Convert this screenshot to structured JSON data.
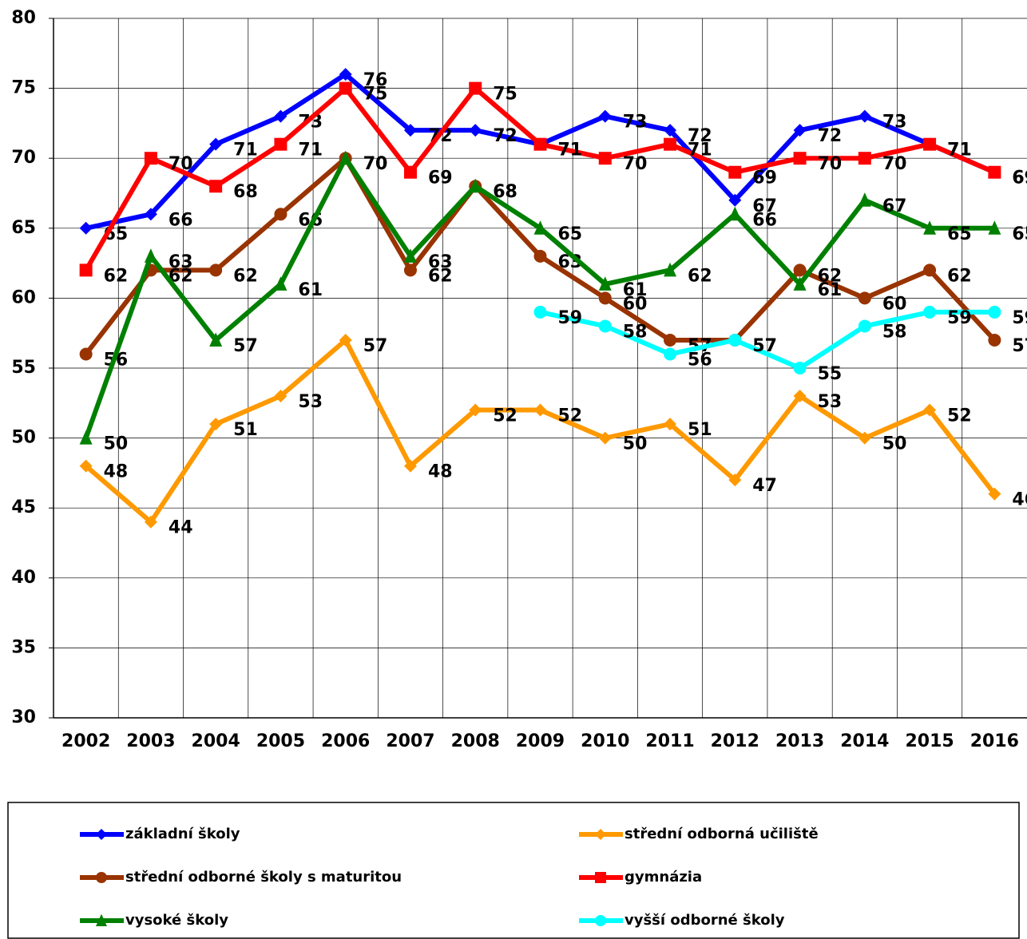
{
  "chart_data": {
    "type": "line",
    "categories": [
      "2002",
      "2003",
      "2004",
      "2005",
      "2006",
      "2007",
      "2008",
      "2009",
      "2010",
      "2011",
      "2012",
      "2013",
      "2014",
      "2015",
      "2016"
    ],
    "ylim": [
      30,
      80
    ],
    "yticks": [
      30,
      35,
      40,
      45,
      50,
      55,
      60,
      65,
      70,
      75,
      80
    ],
    "grid": true,
    "series": [
      {
        "name": "základní školy",
        "color": "#0000ff",
        "marker": "diamond",
        "values": [
          65,
          66,
          71,
          73,
          76,
          72,
          72,
          71,
          73,
          72,
          67,
          72,
          73,
          71,
          69
        ]
      },
      {
        "name": "střední odborná učiliště",
        "color": "#ff9900",
        "marker": "diamond",
        "values": [
          48,
          44,
          51,
          53,
          57,
          48,
          52,
          52,
          50,
          51,
          47,
          53,
          50,
          52,
          46
        ]
      },
      {
        "name": "střední odborné školy s maturitou",
        "color": "#993300",
        "marker": "circle",
        "values": [
          56,
          62,
          62,
          66,
          70,
          62,
          68,
          63,
          60,
          57,
          57,
          62,
          60,
          62,
          57
        ]
      },
      {
        "name": "gymnázia",
        "color": "#ff0000",
        "marker": "square",
        "values": [
          62,
          70,
          68,
          71,
          75,
          69,
          75,
          71,
          70,
          71,
          69,
          70,
          70,
          71,
          69
        ]
      },
      {
        "name": "vysoké školy",
        "color": "#008000",
        "marker": "triangle",
        "values": [
          50,
          63,
          57,
          61,
          70,
          63,
          68,
          65,
          61,
          62,
          66,
          61,
          67,
          65,
          65
        ]
      },
      {
        "name": "vyšší odborné školy",
        "color": "#00ffff",
        "marker": "circle",
        "values": [
          null,
          null,
          null,
          null,
          null,
          null,
          null,
          59,
          58,
          56,
          57,
          55,
          58,
          59,
          59
        ]
      }
    ]
  }
}
